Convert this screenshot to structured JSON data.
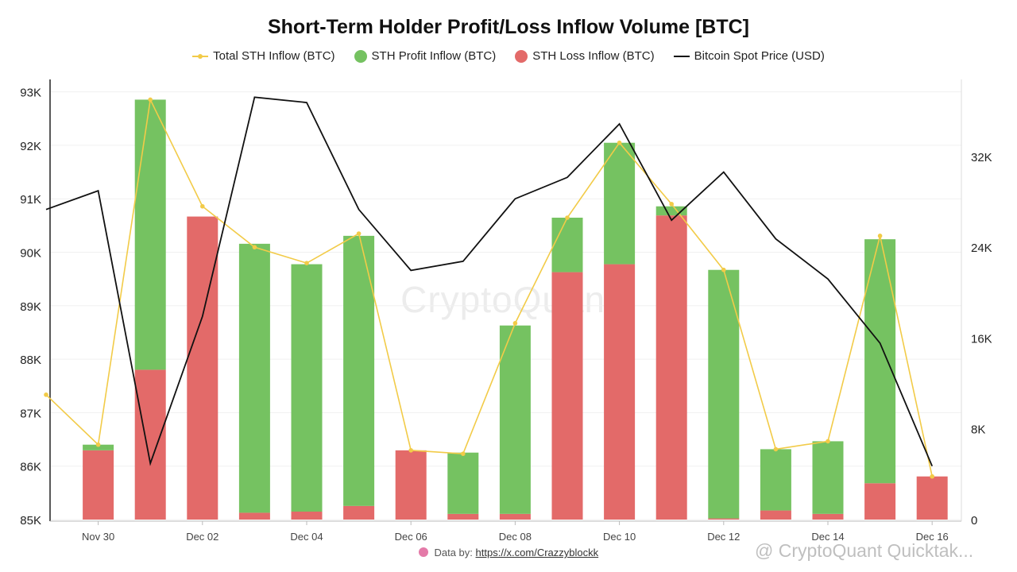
{
  "chart_data": {
    "type": "bar",
    "title": "Short-Term Holder Profit/Loss Inflow Volume [BTC]",
    "legend_position": "top-center",
    "grid": true,
    "x_ticks": [
      "Nov 30",
      "Dec 02",
      "Dec 04",
      "Dec 06",
      "Dec 08",
      "Dec 10",
      "Dec 12",
      "Dec 14",
      "Dec 16"
    ],
    "categories": [
      "Nov 29",
      "Nov 30",
      "Dec 01",
      "Dec 02",
      "Dec 03",
      "Dec 04",
      "Dec 05",
      "Dec 06",
      "Dec 07",
      "Dec 08",
      "Dec 09",
      "Dec 10",
      "Dec 11",
      "Dec 12",
      "Dec 13",
      "Dec 14",
      "Dec 15",
      "Dec 16"
    ],
    "left_axis": {
      "label": "Bitcoin Spot Price (USD)",
      "ticks": [
        "85K",
        "86K",
        "87K",
        "88K",
        "89K",
        "90K",
        "91K",
        "92K",
        "93K"
      ],
      "range": [
        85000,
        93000
      ]
    },
    "right_axis": {
      "label": "BTC",
      "ticks": [
        "0",
        "8K",
        "16K",
        "24K",
        "32K"
      ],
      "range": [
        0,
        37600
      ]
    },
    "series": [
      {
        "name": "STH Loss Inflow (BTC)",
        "kind": "bar-stacked",
        "axis": "right",
        "color": "#e36a69",
        "values": [
          null,
          6100,
          13200,
          26700,
          600,
          700,
          1200,
          6100,
          500,
          500,
          21800,
          22500,
          26800,
          100,
          800,
          500,
          3200,
          3800
        ]
      },
      {
        "name": "STH Profit Inflow (BTC)",
        "kind": "bar-stacked",
        "axis": "right",
        "color": "#75c261",
        "values": [
          null,
          500,
          23800,
          0,
          23700,
          21800,
          23800,
          0,
          5400,
          16600,
          4800,
          10700,
          800,
          21900,
          5400,
          6400,
          21500,
          0
        ]
      },
      {
        "name": "Total STH Inflow (BTC)",
        "kind": "line",
        "axis": "right",
        "color": "#f2cb48",
        "values": [
          11000,
          6600,
          37000,
          27600,
          24000,
          22600,
          25200,
          6100,
          5800,
          17300,
          26600,
          33200,
          27800,
          22000,
          6200,
          6900,
          25000,
          3800
        ]
      },
      {
        "name": "Bitcoin Spot Price (USD)",
        "kind": "line",
        "axis": "left",
        "color": "#111111",
        "values": [
          90800,
          91150,
          86050,
          88800,
          92900,
          92800,
          90800,
          89660,
          89830,
          91000,
          91400,
          92400,
          90600,
          91500,
          90250,
          89500,
          88300,
          86000
        ]
      }
    ]
  },
  "footer": {
    "prefix": "Data by:",
    "link": "https://x.com/Crazzyblockk"
  },
  "watermark": "CryptoQuant",
  "corner_mark": "@ CryptoQuant Quicktak..."
}
